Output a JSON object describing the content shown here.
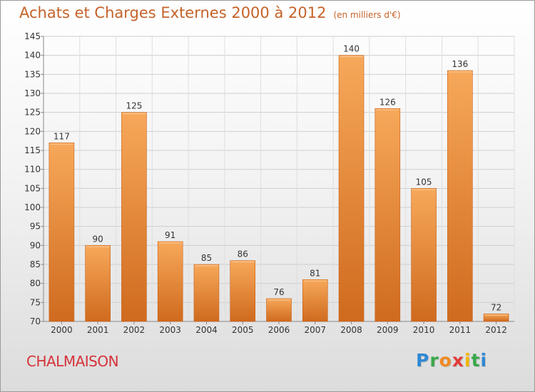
{
  "header": {
    "title": "Achats et Charges Externes 2000 à 2012",
    "unit": "(en milliers d'€)"
  },
  "footer": {
    "commune": "CHALMAISON",
    "brand_letters": [
      {
        "char": "P",
        "color": "#2f89d4"
      },
      {
        "char": "r",
        "color": "#3aa84a"
      },
      {
        "char": "o",
        "color": "#f08a22"
      },
      {
        "char": "x",
        "color": "#e23b3b"
      },
      {
        "char": "i",
        "color": "#f2b600"
      },
      {
        "char": "t",
        "color": "#3aa84a"
      },
      {
        "char": "i",
        "color": "#2f89d4"
      }
    ]
  },
  "chart_data": {
    "type": "bar",
    "title": "Achats et Charges Externes 2000 à 2012",
    "subtitle": "(en milliers d'€)",
    "xlabel": "",
    "ylabel": "",
    "categories": [
      "2000",
      "2001",
      "2002",
      "2003",
      "2004",
      "2005",
      "2006",
      "2007",
      "2008",
      "2009",
      "2010",
      "2011",
      "2012"
    ],
    "values": [
      117,
      90,
      125,
      91,
      85,
      86,
      76,
      81,
      140,
      126,
      105,
      136,
      72
    ],
    "ylim": [
      70,
      145
    ],
    "yticks": [
      70,
      75,
      80,
      85,
      90,
      95,
      100,
      105,
      110,
      115,
      120,
      125,
      130,
      135,
      140,
      145
    ],
    "grid": true,
    "legend": "none",
    "bar_color": "#f08a2c",
    "bar_color_dark": "#d2681a"
  }
}
